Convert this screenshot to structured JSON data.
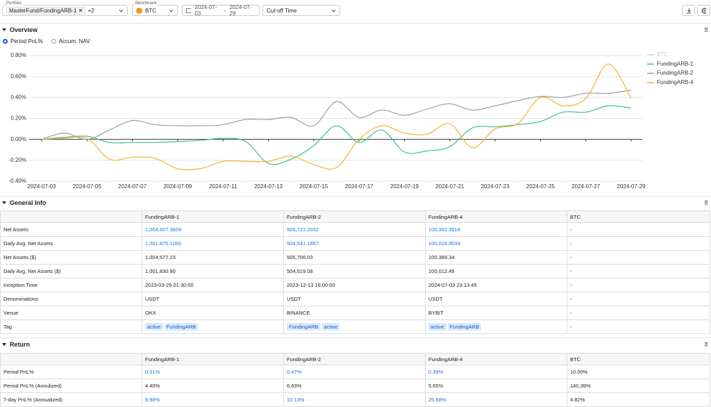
{
  "toolbar": {
    "portfolio_label": "Portfolio",
    "portfolio": "MasterFund/FundingARB-1",
    "portfolio_more": "+2",
    "benchmark_label": "Benchmark",
    "benchmark": "BTC",
    "date_start": "2024-07-03",
    "date_sep": "-",
    "date_end": "2024-07-29",
    "cutoff": "Cut-off Time"
  },
  "overview": {
    "title": "Overview",
    "options": [
      "Period PnL%",
      "Accum. NAV"
    ],
    "selected": 0
  },
  "chart_data": {
    "type": "line",
    "x": [
      "2024-07-03",
      "2024-07-04",
      "2024-07-05",
      "2024-07-06",
      "2024-07-07",
      "2024-07-08",
      "2024-07-09",
      "2024-07-10",
      "2024-07-11",
      "2024-07-12",
      "2024-07-13",
      "2024-07-14",
      "2024-07-15",
      "2024-07-16",
      "2024-07-17",
      "2024-07-18",
      "2024-07-19",
      "2024-07-20",
      "2024-07-21",
      "2024-07-22",
      "2024-07-23",
      "2024-07-24",
      "2024-07-25",
      "2024-07-26",
      "2024-07-27",
      "2024-07-28",
      "2024-07-29"
    ],
    "xticks": [
      "2024-07-03",
      "2024-07-05",
      "2024-07-07",
      "2024-07-09",
      "2024-07-11",
      "2024-07-13",
      "2024-07-15",
      "2024-07-17",
      "2024-07-19",
      "2024-07-21",
      "2024-07-23",
      "2024-07-25",
      "2024-07-27",
      "2024-07-29"
    ],
    "ylim": [
      -0.4,
      0.8
    ],
    "yticks": [
      {
        "value": -0.4,
        "label": "-0.40%"
      },
      {
        "value": -0.2,
        "label": "-0.20%"
      },
      {
        "value": 0,
        "label": "0.00%"
      },
      {
        "value": 0.2,
        "label": "0.20%"
      },
      {
        "value": 0.4,
        "label": "0.40%"
      },
      {
        "value": 0.6,
        "label": "0.60%"
      },
      {
        "value": 0.8,
        "label": "0.80%"
      }
    ],
    "grid": true,
    "legend": "top-right",
    "series": [
      {
        "name": "BTC",
        "color": "#cccccc",
        "hidden": true,
        "values": [
          null,
          null,
          null,
          null,
          null,
          null,
          null,
          null,
          null,
          null,
          null,
          null,
          null,
          null,
          null,
          null,
          null,
          null,
          null,
          null,
          null,
          null,
          null,
          null,
          null,
          null,
          null
        ]
      },
      {
        "name": "FundingARB-1",
        "color": "#3dbf8f",
        "values": [
          0,
          0.02,
          0.03,
          -0.03,
          -0.03,
          -0.03,
          -0.02,
          -0.01,
          0.01,
          -0.02,
          -0.23,
          -0.19,
          -0.06,
          0.13,
          -0.03,
          0.09,
          -0.12,
          -0.11,
          -0.07,
          0.11,
          0.12,
          0.14,
          0.17,
          0.26,
          0.26,
          0.32,
          0.3
        ]
      },
      {
        "name": "FundingARB-2",
        "color": "#9e9e9e",
        "values": [
          0,
          0.06,
          0,
          0.09,
          0.18,
          0.14,
          0.13,
          0.13,
          0.14,
          0.19,
          0.19,
          0.21,
          0.13,
          0.36,
          0.21,
          0.28,
          0.23,
          0.29,
          0.34,
          0.28,
          0.32,
          0.37,
          0.41,
          0.4,
          0.44,
          0.44,
          0.47
        ]
      },
      {
        "name": "FundingARB-4",
        "color": "#f0b429",
        "values": [
          0,
          0.01,
          0.01,
          -0.19,
          -0.17,
          -0.18,
          -0.28,
          -0.28,
          -0.21,
          -0.21,
          -0.21,
          -0.16,
          -0.24,
          -0.27,
          0,
          0.13,
          0.06,
          0.05,
          0.15,
          -0.08,
          0.1,
          0.15,
          0.4,
          0.32,
          0.39,
          0.72,
          0.39
        ]
      }
    ]
  },
  "general_info": {
    "title": "General Info",
    "columns": [
      "FundingARB-1",
      "FundingARB-2",
      "FundingARB-4",
      "BTC"
    ],
    "rows": [
      {
        "label": "Net Assets",
        "cells": [
          "1,004,607.3659",
          "505,721.2032",
          "100,392.3518",
          "-"
        ],
        "links": [
          true,
          true,
          true,
          false
        ]
      },
      {
        "label": "Daily Avg. Net Assets",
        "cells": [
          "1,001,875.1050",
          "504,541.1857",
          "100,016.9034",
          "-"
        ],
        "links": [
          true,
          true,
          true,
          false
        ]
      },
      {
        "label": "Net Assets ($)",
        "cells": [
          "1,004,577.23",
          "505,706.03",
          "100,389.34",
          "-"
        ]
      },
      {
        "label": "Daily Avg. Net Assets ($)",
        "cells": [
          "1,001,830.90",
          "504,519.08",
          "100,012.49",
          "-"
        ]
      },
      {
        "label": "Inception Time",
        "cells": [
          "2023-03-29 01:30:00",
          "2023-12-13 16:00:00",
          "2024-07-03 23:13:45",
          "-"
        ]
      },
      {
        "label": "Denominations",
        "cells": [
          "USDT",
          "USDT",
          "USDT",
          "-"
        ]
      },
      {
        "label": "Venue",
        "cells": [
          "OKX",
          "BINANCE",
          "BYBIT",
          "-"
        ]
      },
      {
        "label": "Tag",
        "cells": [
          [
            "active",
            "FundingARB"
          ],
          [
            "FundingARB",
            "active"
          ],
          [
            "active",
            "FundingARB"
          ],
          "-"
        ]
      }
    ]
  },
  "return": {
    "title": "Return",
    "columns": [
      "FundingARB-1",
      "FundingARB-2",
      "FundingARB-4",
      "BTC"
    ],
    "rows": [
      {
        "label": "Period PnL%",
        "cells": [
          "0.31%",
          "0.47%",
          "0.39%",
          "10.00%"
        ],
        "links": [
          true,
          true,
          true,
          false
        ]
      },
      {
        "label": "Period PnL% (Annulized)",
        "cells": [
          "4.40%",
          "6.63%",
          "5.65%",
          "140.39%"
        ]
      },
      {
        "label": "7-day PnL% (Annualized)",
        "cells": [
          "9.98%",
          "10.13%",
          "25.88%",
          "4.82%"
        ],
        "links": [
          true,
          true,
          true,
          false
        ]
      }
    ]
  }
}
